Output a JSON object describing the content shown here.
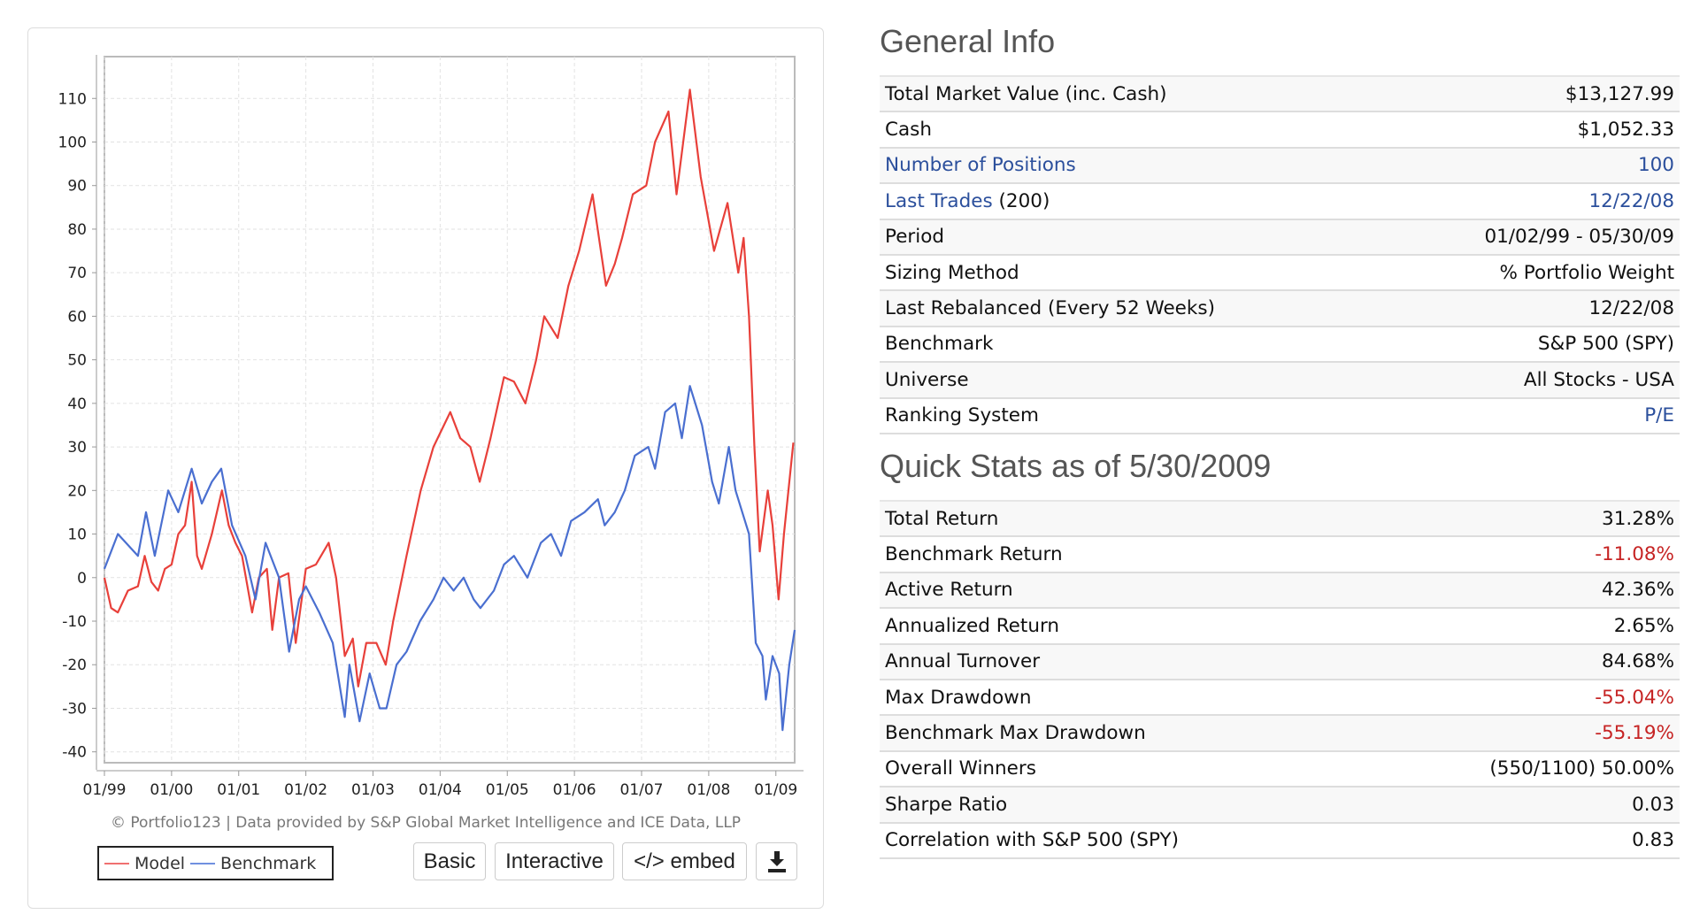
{
  "chart_data": {
    "type": "line",
    "ylim": [
      -42.5,
      119.6
    ],
    "xlim": [
      1999.0,
      2009.28
    ],
    "yticks": [
      110,
      100,
      90,
      80,
      70,
      60,
      50,
      40,
      30,
      20,
      10,
      0,
      -10,
      -20,
      -30,
      -40
    ],
    "xtick_labels": [
      "01/99",
      "01/00",
      "01/01",
      "01/02",
      "01/03",
      "01/04",
      "01/05",
      "01/06",
      "01/07",
      "01/08",
      "01/09"
    ],
    "grid": true,
    "legend_placement": "bottom-left",
    "series": [
      {
        "name": "Model",
        "color": "#e8403a",
        "x": [
          1999.0,
          1999.1,
          1999.2,
          1999.35,
          1999.5,
          1999.6,
          1999.7,
          1999.8,
          1999.9,
          2000.0,
          2000.1,
          2000.2,
          2000.3,
          2000.38,
          2000.45,
          2000.6,
          2000.75,
          2000.85,
          2000.95,
          2001.05,
          2001.2,
          2001.3,
          2001.42,
          2001.5,
          2001.6,
          2001.74,
          2001.85,
          2002.0,
          2002.15,
          2002.34,
          2002.45,
          2002.58,
          2002.7,
          2002.78,
          2002.9,
          2003.05,
          2003.19,
          2003.3,
          2003.5,
          2003.71,
          2003.9,
          2004.15,
          2004.3,
          2004.45,
          2004.59,
          2004.75,
          2004.95,
          2005.1,
          2005.27,
          2005.43,
          2005.55,
          2005.75,
          2005.91,
          2006.07,
          2006.27,
          2006.47,
          2006.6,
          2006.71,
          2006.87,
          2007.07,
          2007.2,
          2007.4,
          2007.52,
          2007.72,
          2007.88,
          2008.08,
          2008.28,
          2008.44,
          2008.52,
          2008.6,
          2008.68,
          2008.76,
          2008.88,
          2008.95,
          2009.04,
          2009.12,
          2009.26
        ],
        "values": [
          0,
          -7,
          -8,
          -3,
          -2,
          5,
          -1,
          -3,
          2,
          3,
          10,
          12,
          22,
          5,
          2,
          10,
          20,
          12,
          8,
          5,
          -8,
          0,
          2,
          -12,
          0,
          1,
          -15,
          2,
          3,
          8,
          0,
          -18,
          -14,
          -25,
          -15,
          -15,
          -20,
          -10,
          5,
          20,
          30,
          38,
          32,
          30,
          22,
          32,
          46,
          45,
          40,
          50,
          60,
          55,
          67,
          75,
          88,
          67,
          72,
          78,
          88,
          90,
          100,
          107,
          88,
          112,
          92,
          75,
          86,
          70,
          78,
          60,
          30,
          6,
          20,
          12,
          -5,
          10,
          31
        ]
      },
      {
        "name": "Benchmark",
        "color": "#4a6fd0",
        "x": [
          1999.0,
          1999.2,
          1999.5,
          1999.62,
          1999.75,
          1999.95,
          2000.1,
          2000.3,
          2000.45,
          2000.6,
          2000.74,
          2000.9,
          2001.1,
          2001.25,
          2001.4,
          2001.6,
          2001.75,
          2001.9,
          2002.0,
          2002.2,
          2002.4,
          2002.58,
          2002.65,
          2002.8,
          2002.95,
          2003.1,
          2003.2,
          2003.35,
          2003.5,
          2003.7,
          2003.9,
          2004.05,
          2004.2,
          2004.35,
          2004.5,
          2004.6,
          2004.8,
          2004.95,
          2005.1,
          2005.3,
          2005.5,
          2005.65,
          2005.8,
          2005.95,
          2006.15,
          2006.35,
          2006.45,
          2006.6,
          2006.75,
          2006.9,
          2007.1,
          2007.2,
          2007.35,
          2007.5,
          2007.6,
          2007.72,
          2007.9,
          2008.05,
          2008.15,
          2008.3,
          2008.4,
          2008.5,
          2008.6,
          2008.7,
          2008.8,
          2008.85,
          2008.95,
          2009.05,
          2009.1,
          2009.2,
          2009.28
        ],
        "values": [
          2,
          10,
          5,
          15,
          5,
          20,
          15,
          25,
          17,
          22,
          25,
          12,
          5,
          -5,
          8,
          0,
          -17,
          -5,
          -2,
          -8,
          -15,
          -32,
          -20,
          -33,
          -22,
          -30,
          -30,
          -20,
          -17,
          -10,
          -5,
          0,
          -3,
          0,
          -5,
          -7,
          -3,
          3,
          5,
          0,
          8,
          10,
          5,
          13,
          15,
          18,
          12,
          15,
          20,
          28,
          30,
          25,
          38,
          40,
          32,
          44,
          35,
          22,
          17,
          30,
          20,
          15,
          10,
          -15,
          -18,
          -28,
          -18,
          -22,
          -35,
          -20,
          -12
        ]
      }
    ]
  },
  "chart_footer": {
    "copyright": "© Portfolio123 | Data provided by S&P Global Market Intelligence and ICE Data, LLP",
    "legend_model": "Model",
    "legend_benchmark": "Benchmark"
  },
  "buttons": {
    "basic": "Basic",
    "interactive": "Interactive",
    "embed": "</> embed",
    "download_icon": "download-icon"
  },
  "general": {
    "title": "General Info",
    "rows": [
      {
        "label": "Total Market Value (inc. Cash)",
        "value": "$13,127.99"
      },
      {
        "label": "Cash",
        "value": "$1,052.33"
      },
      {
        "label": "Number of Positions",
        "value": "100",
        "link": true
      },
      {
        "label": "Last Trades",
        "suffix": " (200)",
        "value": "12/22/08",
        "link": true
      },
      {
        "label": "Period",
        "value": "01/02/99 - 05/30/09"
      },
      {
        "label": "Sizing Method",
        "value": "% Portfolio Weight"
      },
      {
        "label": "Last Rebalanced (Every 52 Weeks)",
        "value": "12/22/08"
      },
      {
        "label": "Benchmark",
        "value": "S&P 500 (SPY)"
      },
      {
        "label": "Universe",
        "value": "All Stocks - USA"
      },
      {
        "label": "Ranking System",
        "value": "P/E",
        "valueLink": true
      }
    ]
  },
  "stats": {
    "title": "Quick Stats as of 5/30/2009",
    "rows": [
      {
        "label": "Total Return",
        "value": "31.28%"
      },
      {
        "label": "Benchmark Return",
        "value": "-11.08%",
        "neg": true
      },
      {
        "label": "Active Return",
        "value": "42.36%"
      },
      {
        "label": "Annualized Return",
        "value": "2.65%"
      },
      {
        "label": "Annual Turnover",
        "value": "84.68%"
      },
      {
        "label": "Max Drawdown",
        "value": "-55.04%",
        "neg": true
      },
      {
        "label": "Benchmark Max Drawdown",
        "value": "-55.19%",
        "neg": true
      },
      {
        "label": "Overall Winners",
        "value": "(550/1100) 50.00%"
      },
      {
        "label": "Sharpe Ratio",
        "value": "0.03"
      },
      {
        "label": "Correlation with S&P 500 (SPY)",
        "value": "0.83"
      }
    ]
  }
}
